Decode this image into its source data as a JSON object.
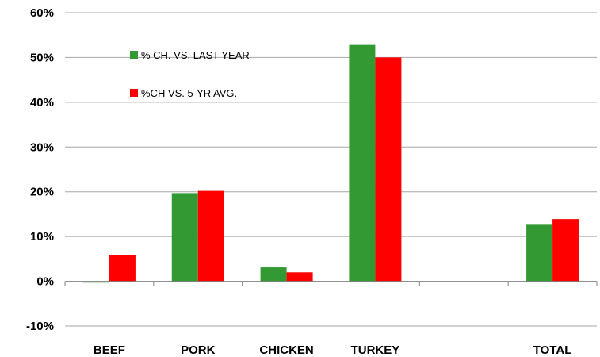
{
  "chart_data": {
    "type": "bar",
    "categories": [
      "BEEF",
      "PORK",
      "CHICKEN",
      "TURKEY",
      "",
      "TOTAL"
    ],
    "series": [
      {
        "name": "% CH. VS. LAST YEAR",
        "color": "#339933",
        "values": [
          -0.3,
          19.7,
          3.1,
          52.8,
          0,
          12.8
        ]
      },
      {
        "name": "%CH VS. 5-YR AVG.",
        "color": "#ff0000",
        "values": [
          5.8,
          20.2,
          2.0,
          50.0,
          0,
          13.9
        ]
      }
    ],
    "yticks": [
      "60%",
      "50%",
      "40%",
      "30%",
      "20%",
      "10%",
      "0%",
      "-10%"
    ],
    "ytick_values": [
      60,
      50,
      40,
      30,
      20,
      10,
      0,
      -10
    ],
    "ylim": [
      -10,
      60
    ],
    "grid": true,
    "legend_position": "top-left",
    "title": "",
    "xlabel": "",
    "ylabel": ""
  }
}
